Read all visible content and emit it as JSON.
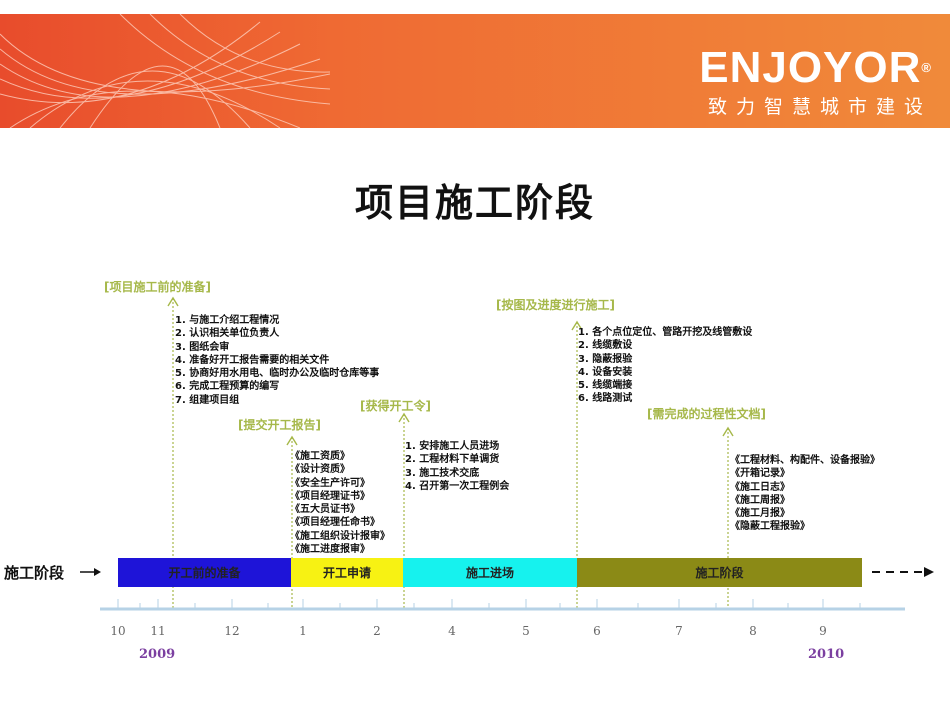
{
  "brand": {
    "logo_text": "ENJOYOR",
    "registered_mark": "®",
    "slogan": "致力智慧城市建设",
    "colors": {
      "banner_left": "#e84c2c",
      "banner_right": "#f08a3a"
    }
  },
  "title": "项目施工阶段",
  "row_label": "施工阶段",
  "milestones": [
    {
      "label": "[项目施工前的准备]",
      "items": [
        "1. 与施工介绍工程情况",
        "2. 认识相关单位负责人",
        "3. 图纸会审",
        "4. 准备好开工报告需要的相关文件",
        "5. 协商好用水用电、临时办公及临时仓库等事",
        "6. 完成工程预算的编写",
        "7. 组建项目组"
      ]
    },
    {
      "label": "[提交开工报告]",
      "items": [
        "《施工资质》",
        "《设计资质》",
        "《安全生产许可》",
        "《项目经理证书》",
        "《五大员证书》",
        "《项目经理任命书》",
        "《施工组织设计报审》",
        "《施工进度报审》"
      ]
    },
    {
      "label": "[获得开工令]",
      "items": [
        "1. 安排施工人员进场",
        "2. 工程材料下单调货",
        "3. 施工技术交底",
        "4. 召开第一次工程例会"
      ]
    },
    {
      "label": "[按图及进度进行施工]",
      "items": [
        "1. 各个点位定位、管路开挖及线管敷设",
        "2. 线缆敷设",
        "3. 隐蔽报验",
        "4. 设备安装",
        "5. 线缆端接",
        "6. 线路测试"
      ]
    },
    {
      "label": "[需完成的过程性文档]",
      "items": [
        "《工程材料、构配件、设备报验》",
        "《开箱记录》",
        "《施工日志》",
        "《施工周报》",
        "《施工月报》",
        "《隐蔽工程报验》"
      ]
    }
  ],
  "phases": [
    {
      "label": "开工前的准备",
      "color": "#1e14d8"
    },
    {
      "label": "开工申请",
      "color": "#f7f213"
    },
    {
      "label": "施工进场",
      "color": "#16f2ee"
    },
    {
      "label": "施工阶段",
      "color": "#8b8a16"
    }
  ],
  "timeline": {
    "months": [
      "10",
      "11",
      "12",
      "1",
      "2",
      "4",
      "5",
      "6",
      "7",
      "8",
      "9"
    ],
    "years": [
      "2009",
      "2010"
    ],
    "colors": {
      "axis": "#b6d2e6",
      "guide": "#a6b84a",
      "year": "#7b3fa0"
    }
  }
}
